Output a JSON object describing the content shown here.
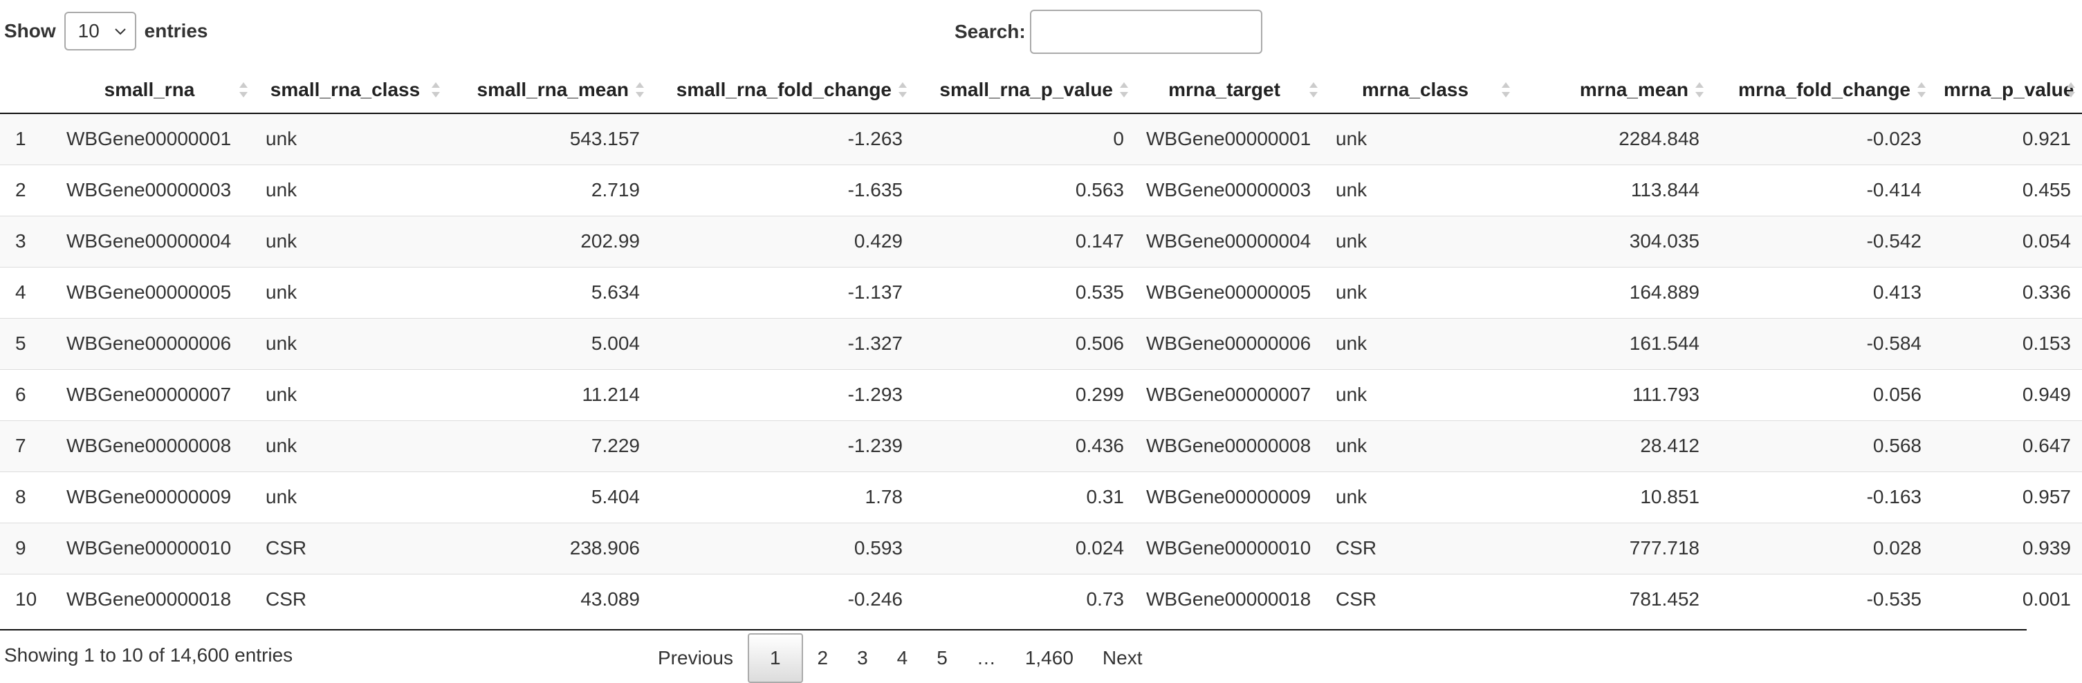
{
  "length": {
    "label_show": "Show",
    "selected": "10",
    "label_entries": "entries"
  },
  "search": {
    "label": "Search:",
    "value": ""
  },
  "table": {
    "headers": [
      "",
      "small_rna",
      "small_rna_class",
      "small_rna_mean",
      "small_rna_fold_change",
      "small_rna_p_value",
      "mrna_target",
      "mrna_class",
      "mrna_mean",
      "mrna_fold_change",
      "mrna_p_value"
    ],
    "rows": [
      [
        "1",
        "WBGene00000001",
        "unk",
        "543.157",
        "-1.263",
        "0",
        "WBGene00000001",
        "unk",
        "2284.848",
        "-0.023",
        "0.921"
      ],
      [
        "2",
        "WBGene00000003",
        "unk",
        "2.719",
        "-1.635",
        "0.563",
        "WBGene00000003",
        "unk",
        "113.844",
        "-0.414",
        "0.455"
      ],
      [
        "3",
        "WBGene00000004",
        "unk",
        "202.99",
        "0.429",
        "0.147",
        "WBGene00000004",
        "unk",
        "304.035",
        "-0.542",
        "0.054"
      ],
      [
        "4",
        "WBGene00000005",
        "unk",
        "5.634",
        "-1.137",
        "0.535",
        "WBGene00000005",
        "unk",
        "164.889",
        "0.413",
        "0.336"
      ],
      [
        "5",
        "WBGene00000006",
        "unk",
        "5.004",
        "-1.327",
        "0.506",
        "WBGene00000006",
        "unk",
        "161.544",
        "-0.584",
        "0.153"
      ],
      [
        "6",
        "WBGene00000007",
        "unk",
        "11.214",
        "-1.293",
        "0.299",
        "WBGene00000007",
        "unk",
        "111.793",
        "0.056",
        "0.949"
      ],
      [
        "7",
        "WBGene00000008",
        "unk",
        "7.229",
        "-1.239",
        "0.436",
        "WBGene00000008",
        "unk",
        "28.412",
        "0.568",
        "0.647"
      ],
      [
        "8",
        "WBGene00000009",
        "unk",
        "5.404",
        "1.78",
        "0.31",
        "WBGene00000009",
        "unk",
        "10.851",
        "-0.163",
        "0.957"
      ],
      [
        "9",
        "WBGene00000010",
        "CSR",
        "238.906",
        "0.593",
        "0.024",
        "WBGene00000010",
        "CSR",
        "777.718",
        "0.028",
        "0.939"
      ],
      [
        "10",
        "WBGene00000018",
        "CSR",
        "43.089",
        "-0.246",
        "0.73",
        "WBGene00000018",
        "CSR",
        "781.452",
        "-0.535",
        "0.001"
      ]
    ]
  },
  "info": "Showing 1 to 10 of 14,600 entries",
  "pagination": {
    "previous": "Previous",
    "pages": [
      "1",
      "2",
      "3",
      "4",
      "5",
      "…",
      "1,460"
    ],
    "next": "Next",
    "current": "1"
  },
  "icons": {
    "sort": "sort-both-icon",
    "select": "chevron-down-icon"
  },
  "colors": {
    "header_rule": "#111111",
    "row_stripe": "#f9f9f9",
    "row_rule": "#dddddd",
    "border": "#aaaaaa"
  }
}
